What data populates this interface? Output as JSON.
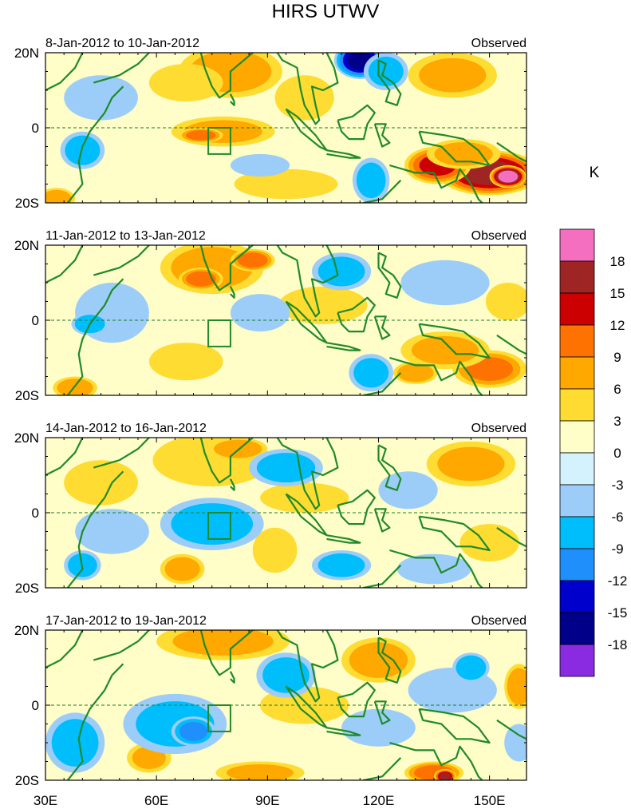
{
  "chart_data": {
    "type": "heatmap",
    "title": "HIRS UTWV",
    "colorbar": {
      "unit_label": "K",
      "tick_labels": [
        "18",
        "15",
        "12",
        "9",
        "6",
        "3",
        "0",
        "-3",
        "-6",
        "-9",
        "-12",
        "-15",
        "-18"
      ],
      "colors": [
        "#f46fc0",
        "#9f2525",
        "#cc0000",
        "#fd7200",
        "#fea800",
        "#fedc32",
        "#fffdc8",
        "#d4f2fd",
        "#9ccdf9",
        "#00bdfc",
        "#1f8ffc",
        "#0000cd",
        "#000089",
        "#8a2be2"
      ]
    },
    "x_axis": {
      "tick_labels": [
        "30E",
        "60E",
        "90E",
        "120E",
        "150E"
      ],
      "tick_values": [
        30,
        60,
        90,
        120,
        150
      ],
      "range": [
        30,
        160
      ]
    },
    "y_axis": {
      "tick_labels": [
        "20N",
        "0",
        "20S"
      ],
      "tick_values": [
        20,
        0,
        -20
      ],
      "range": [
        -20,
        20
      ]
    },
    "reference_box": {
      "lon": [
        74,
        80
      ],
      "lat": [
        -7,
        0
      ]
    },
    "panels": [
      {
        "date_label": "8-Jan-2012 to 10-Jan-2012",
        "right_label": "Observed",
        "blobs": [
          {
            "lon": 150,
            "lat": -12,
            "rx": 14,
            "ry": 6,
            "v": 16
          },
          {
            "lon": 136,
            "lat": -10,
            "rx": 9,
            "ry": 5,
            "v": 12
          },
          {
            "lon": 155,
            "lat": -13,
            "rx": 5,
            "ry": 3,
            "v": 20
          },
          {
            "lon": 143,
            "lat": -7,
            "rx": 10,
            "ry": 4,
            "v": 7
          },
          {
            "lon": 80,
            "lat": 15,
            "rx": 14,
            "ry": 7,
            "v": 7
          },
          {
            "lon": 68,
            "lat": 12,
            "rx": 10,
            "ry": 5,
            "v": 5
          },
          {
            "lon": 78,
            "lat": -1,
            "rx": 14,
            "ry": 4,
            "v": 6
          },
          {
            "lon": 72,
            "lat": -2,
            "rx": 6,
            "ry": 2,
            "v": 10
          },
          {
            "lon": 140,
            "lat": 14,
            "rx": 12,
            "ry": 6,
            "v": 6
          },
          {
            "lon": 100,
            "lat": 8,
            "rx": 8,
            "ry": 6,
            "v": 4
          },
          {
            "lon": 95,
            "lat": -15,
            "rx": 14,
            "ry": 4,
            "v": 5
          },
          {
            "lon": 115,
            "lat": 18,
            "rx": 7,
            "ry": 5,
            "v": -15
          },
          {
            "lon": 122,
            "lat": 15,
            "rx": 6,
            "ry": 5,
            "v": -7
          },
          {
            "lon": 45,
            "lat": 8,
            "rx": 10,
            "ry": 6,
            "v": -5
          },
          {
            "lon": 40,
            "lat": -6,
            "rx": 6,
            "ry": 5,
            "v": -7
          },
          {
            "lon": 118,
            "lat": -14,
            "rx": 5,
            "ry": 6,
            "v": -7
          },
          {
            "lon": 88,
            "lat": -10,
            "rx": 8,
            "ry": 3,
            "v": -4
          },
          {
            "lon": 33,
            "lat": -19,
            "rx": 5,
            "ry": 3,
            "v": 8
          }
        ]
      },
      {
        "date_label": "11-Jan-2012 to 13-Jan-2012",
        "right_label": "Observed",
        "blobs": [
          {
            "lon": 75,
            "lat": 14,
            "rx": 14,
            "ry": 7,
            "v": 7
          },
          {
            "lon": 72,
            "lat": 11,
            "rx": 6,
            "ry": 3,
            "v": 10
          },
          {
            "lon": 86,
            "lat": 16,
            "rx": 6,
            "ry": 3,
            "v": 10
          },
          {
            "lon": 150,
            "lat": -13,
            "rx": 10,
            "ry": 5,
            "v": 9
          },
          {
            "lon": 138,
            "lat": -8,
            "rx": 12,
            "ry": 5,
            "v": 6
          },
          {
            "lon": 130,
            "lat": -14,
            "rx": 6,
            "ry": 3,
            "v": 8
          },
          {
            "lon": 68,
            "lat": -11,
            "rx": 10,
            "ry": 5,
            "v": 4
          },
          {
            "lon": 38,
            "lat": -18,
            "rx": 6,
            "ry": 3,
            "v": 8
          },
          {
            "lon": 105,
            "lat": 4,
            "rx": 12,
            "ry": 5,
            "v": 4
          },
          {
            "lon": 48,
            "lat": 2,
            "rx": 10,
            "ry": 8,
            "v": -5
          },
          {
            "lon": 42,
            "lat": -1,
            "rx": 5,
            "ry": 3,
            "v": -8
          },
          {
            "lon": 110,
            "lat": 13,
            "rx": 8,
            "ry": 5,
            "v": -7
          },
          {
            "lon": 88,
            "lat": 2,
            "rx": 8,
            "ry": 5,
            "v": -4
          },
          {
            "lon": 138,
            "lat": 10,
            "rx": 12,
            "ry": 6,
            "v": -5
          },
          {
            "lon": 118,
            "lat": -14,
            "rx": 6,
            "ry": 5,
            "v": -7
          },
          {
            "lon": 155,
            "lat": 5,
            "rx": 6,
            "ry": 5,
            "v": 4
          }
        ]
      },
      {
        "date_label": "14-Jan-2012 to 16-Jan-2012",
        "right_label": "Observed",
        "blobs": [
          {
            "lon": 75,
            "lat": 14,
            "rx": 16,
            "ry": 7,
            "v": 5
          },
          {
            "lon": 82,
            "lat": 17,
            "rx": 8,
            "ry": 3,
            "v": 8
          },
          {
            "lon": 145,
            "lat": 13,
            "rx": 12,
            "ry": 6,
            "v": 6
          },
          {
            "lon": 45,
            "lat": 8,
            "rx": 10,
            "ry": 6,
            "v": 4
          },
          {
            "lon": 67,
            "lat": -15,
            "rx": 6,
            "ry": 4,
            "v": 7
          },
          {
            "lon": 92,
            "lat": -10,
            "rx": 6,
            "ry": 6,
            "v": 4
          },
          {
            "lon": 150,
            "lat": -8,
            "rx": 8,
            "ry": 5,
            "v": 4
          },
          {
            "lon": 100,
            "lat": 4,
            "rx": 12,
            "ry": 4,
            "v": 4
          },
          {
            "lon": 75,
            "lat": -3,
            "rx": 14,
            "ry": 7,
            "v": -7
          },
          {
            "lon": 95,
            "lat": 12,
            "rx": 10,
            "ry": 5,
            "v": -7
          },
          {
            "lon": 110,
            "lat": -14,
            "rx": 8,
            "ry": 4,
            "v": -7
          },
          {
            "lon": 48,
            "lat": -5,
            "rx": 10,
            "ry": 6,
            "v": -4
          },
          {
            "lon": 40,
            "lat": -14,
            "rx": 5,
            "ry": 4,
            "v": -7
          },
          {
            "lon": 128,
            "lat": 6,
            "rx": 8,
            "ry": 5,
            "v": -4
          },
          {
            "lon": 135,
            "lat": -15,
            "rx": 10,
            "ry": 4,
            "v": -4
          }
        ]
      },
      {
        "date_label": "17-Jan-2012 to 19-Jan-2012",
        "right_label": "Observed",
        "blobs": [
          {
            "lon": 78,
            "lat": 17,
            "rx": 18,
            "ry": 5,
            "v": 6
          },
          {
            "lon": 120,
            "lat": 12,
            "rx": 10,
            "ry": 6,
            "v": 7
          },
          {
            "lon": 135,
            "lat": -18,
            "rx": 8,
            "ry": 3,
            "v": 10
          },
          {
            "lon": 138,
            "lat": -19,
            "rx": 3,
            "ry": 2,
            "v": 15
          },
          {
            "lon": 88,
            "lat": -18,
            "rx": 12,
            "ry": 3,
            "v": 6
          },
          {
            "lon": 58,
            "lat": -14,
            "rx": 6,
            "ry": 4,
            "v": 6
          },
          {
            "lon": 158,
            "lat": 5,
            "rx": 4,
            "ry": 6,
            "v": 8
          },
          {
            "lon": 100,
            "lat": 0,
            "rx": 12,
            "ry": 5,
            "v": 4
          },
          {
            "lon": 65,
            "lat": -5,
            "rx": 14,
            "ry": 8,
            "v": -6
          },
          {
            "lon": 70,
            "lat": -7,
            "rx": 6,
            "ry": 4,
            "v": -9
          },
          {
            "lon": 95,
            "lat": 8,
            "rx": 8,
            "ry": 6,
            "v": -7
          },
          {
            "lon": 38,
            "lat": -10,
            "rx": 8,
            "ry": 8,
            "v": -7
          },
          {
            "lon": 140,
            "lat": 4,
            "rx": 12,
            "ry": 6,
            "v": -5
          },
          {
            "lon": 145,
            "lat": 10,
            "rx": 5,
            "ry": 4,
            "v": -8
          },
          {
            "lon": 120,
            "lat": -6,
            "rx": 10,
            "ry": 5,
            "v": -4
          },
          {
            "lon": 158,
            "lat": -10,
            "rx": 4,
            "ry": 5,
            "v": -5
          }
        ]
      }
    ]
  }
}
